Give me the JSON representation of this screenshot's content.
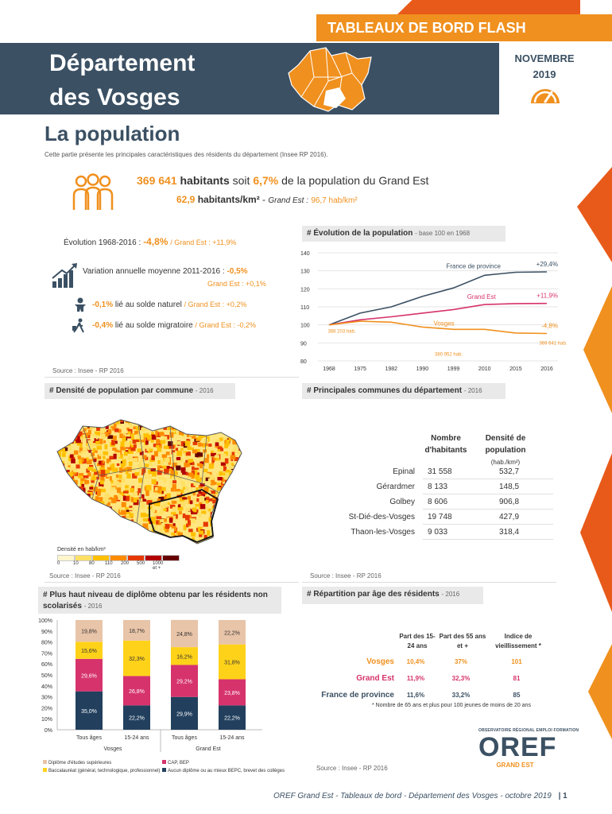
{
  "header": {
    "banner": "TABLEAUX DE BORD FLASH",
    "title_line1": "Département",
    "title_line2": "des Vosges",
    "month": "NOVEMBRE",
    "year": "2019"
  },
  "section": {
    "title": "La population",
    "intro": "Cette partie présente les principales caractéristiques des résidents du département (Insee RP 2016)."
  },
  "key_figures": {
    "pop_value": "369 641",
    "pop_label": "habitants",
    "pop_mid": "soit",
    "pop_share": "6,7%",
    "pop_suffix": "de la population du Grand Est",
    "density_value": "62,9",
    "density_label": "habitants/km²",
    "density_sep": " - ",
    "density_ge_label": "Grand Est :",
    "density_ge_value": "96,7 hab/km²"
  },
  "evolution_stats": {
    "evo_label": "Évolution 1968-2016 :",
    "evo_value": "-4,8%",
    "evo_ge": "/ Grand Est : +11,9%",
    "var_label": "Variation annuelle moyenne 2011-2016 :",
    "var_value": "-0,5%",
    "var_ge": "Grand Est : +0,1%",
    "nat_value": "-0,1%",
    "nat_label": "lié au solde naturel",
    "nat_ge": "/ Grand Est : +0,2%",
    "mig_value": "-0,4%",
    "mig_label": "lié au solde migratoire",
    "mig_ge": "/ Grand Est : -0,2%",
    "source": "Source : Insee - RP 2016"
  },
  "evolution_chart_box": {
    "title": "# Évolution de la population",
    "subtitle": "- base 100 en 1968"
  },
  "chart_data": [
    {
      "type": "line",
      "x": [
        "1968",
        "1975",
        "1982",
        "1990",
        "1999",
        "2010",
        "2015",
        "2016"
      ],
      "ylim": [
        80,
        140
      ],
      "yticks": [
        "80",
        "90",
        "100",
        "110",
        "120",
        "130",
        "140"
      ],
      "series": [
        {
          "name": "France de province",
          "color": "#3b5063",
          "values": [
            100,
            106.5,
            110,
            115.8,
            120.5,
            127.5,
            129.2,
            129.4
          ],
          "end_label": "+29,4%"
        },
        {
          "name": "Grand Est",
          "color": "#d6336c",
          "values": [
            100,
            102.8,
            104.5,
            106.5,
            108.5,
            111.3,
            111.8,
            111.9
          ],
          "end_label": "+11,9%"
        },
        {
          "name": "Vosges",
          "color": "#f0901e",
          "values": [
            100,
            102,
            101.5,
            98.8,
            97.5,
            97.5,
            95.5,
            95.2
          ],
          "end_label": "-4,8%"
        }
      ],
      "annotations": [
        "388 203 hab.",
        "380 952 hab.",
        "369 641 hab."
      ]
    },
    {
      "type": "bar",
      "stacked": true,
      "categories": [
        "Tous âges",
        "15-24 ans",
        "Tous âges",
        "15-24 ans"
      ],
      "groups": [
        "Vosges",
        "Grand Est"
      ],
      "yticks": [
        "0%",
        "10%",
        "20%",
        "30%",
        "40%",
        "50%",
        "60%",
        "70%",
        "80%",
        "90%",
        "100%"
      ],
      "series": [
        {
          "name": "Aucun diplôme ou au mieux BEPC, brevet des collèges",
          "color": "#22405e",
          "values": [
            35.0,
            22.2,
            29.9,
            22.2
          ],
          "labels": [
            "35,0%",
            "22,2%",
            "29,9%",
            "22,2%"
          ]
        },
        {
          "name": "CAP, BEP",
          "color": "#d6336c",
          "values": [
            29.6,
            26.8,
            29.2,
            23.8
          ],
          "labels": [
            "29,6%",
            "26,8%",
            "29,2%",
            "23,8%"
          ]
        },
        {
          "name": "Baccalauréat (général, technologique, professionnel)",
          "color": "#ffd21a",
          "values": [
            15.6,
            32.3,
            16.2,
            31.8
          ],
          "labels": [
            "15,6%",
            "32,3%",
            "16,2%",
            "31,8%"
          ]
        },
        {
          "name": "Diplôme d'études supérieures",
          "color": "#e8c4a8",
          "values": [
            19.8,
            18.7,
            24.8,
            22.2
          ],
          "labels": [
            "19,8%",
            "18,7%",
            "24,8%",
            "22,2%"
          ]
        }
      ]
    }
  ],
  "density_box": {
    "title": "# Densité de population par commune",
    "subtitle": "- 2016",
    "legend_title": "Densité en hab/km²",
    "legend_ticks": [
      "0",
      "10",
      "80",
      "110",
      "200",
      "500",
      "1000 et +"
    ],
    "legend_colors": [
      "#fff6cc",
      "#ffe066",
      "#ffc000",
      "#ff8c00",
      "#e63900",
      "#b30000",
      "#660000"
    ],
    "source": "Source : Insee - RP 2016"
  },
  "communes_box": {
    "title": "# Principales communes du département",
    "subtitle": "- 2016",
    "col1": "Nombre d'habitants",
    "col2": "Densité de population",
    "col2_unit": "(hab./km²)",
    "rows": [
      {
        "name": "Epinal",
        "pop": "31 558",
        "density": "532,7"
      },
      {
        "name": "Gérardmer",
        "pop": "8 133",
        "density": "148,5"
      },
      {
        "name": "Golbey",
        "pop": "8 606",
        "density": "906,8"
      },
      {
        "name": "St-Dié-des-Vosges",
        "pop": "19 748",
        "density": "427,9"
      },
      {
        "name": "Thaon-les-Vosges",
        "pop": "9 033",
        "density": "318,4"
      }
    ],
    "source": "Source : Insee - RP 2016"
  },
  "diploma_box": {
    "title": "# Plus haut niveau de diplôme obtenu par les résidents non scolarisés",
    "subtitle": "- 2016",
    "group_vosges": "Vosges",
    "group_ge": "Grand Est"
  },
  "age_box": {
    "title": "# Répartition par âge des résidents",
    "subtitle": "- 2016",
    "col1": "Part des 15-24 ans",
    "col2": "Part des 55 ans et +",
    "col3": "Indice de vieillissement *",
    "rows": [
      {
        "name": "Vosges",
        "a": "10,4%",
        "b": "37%",
        "c": "101",
        "color": "#f0901e"
      },
      {
        "name": "Grand Est",
        "a": "11,9%",
        "b": "32,3%",
        "c": "81",
        "color": "#d6336c"
      },
      {
        "name": "France de province",
        "a": "11,6%",
        "b": "33,2%",
        "c": "85",
        "color": "#3b5063"
      }
    ],
    "footnote": "* Nombre de 65 ans et plus pour 100 jeunes de moins de 20 ans",
    "source": "Source : Insee - RP 2016"
  },
  "logo": {
    "observatory": "OBSERVATOIRE RÉGIONAL EMPLOI FORMATION",
    "brand": "OREF",
    "region": "GRAND EST"
  },
  "footer": {
    "text": "OREF Grand Est - Tableaux de bord - Département des Vosges - octobre 2019",
    "page": "| 1"
  },
  "colors": {
    "navy": "#3b5063",
    "orange": "#f0901e",
    "pink": "#d6336c"
  }
}
